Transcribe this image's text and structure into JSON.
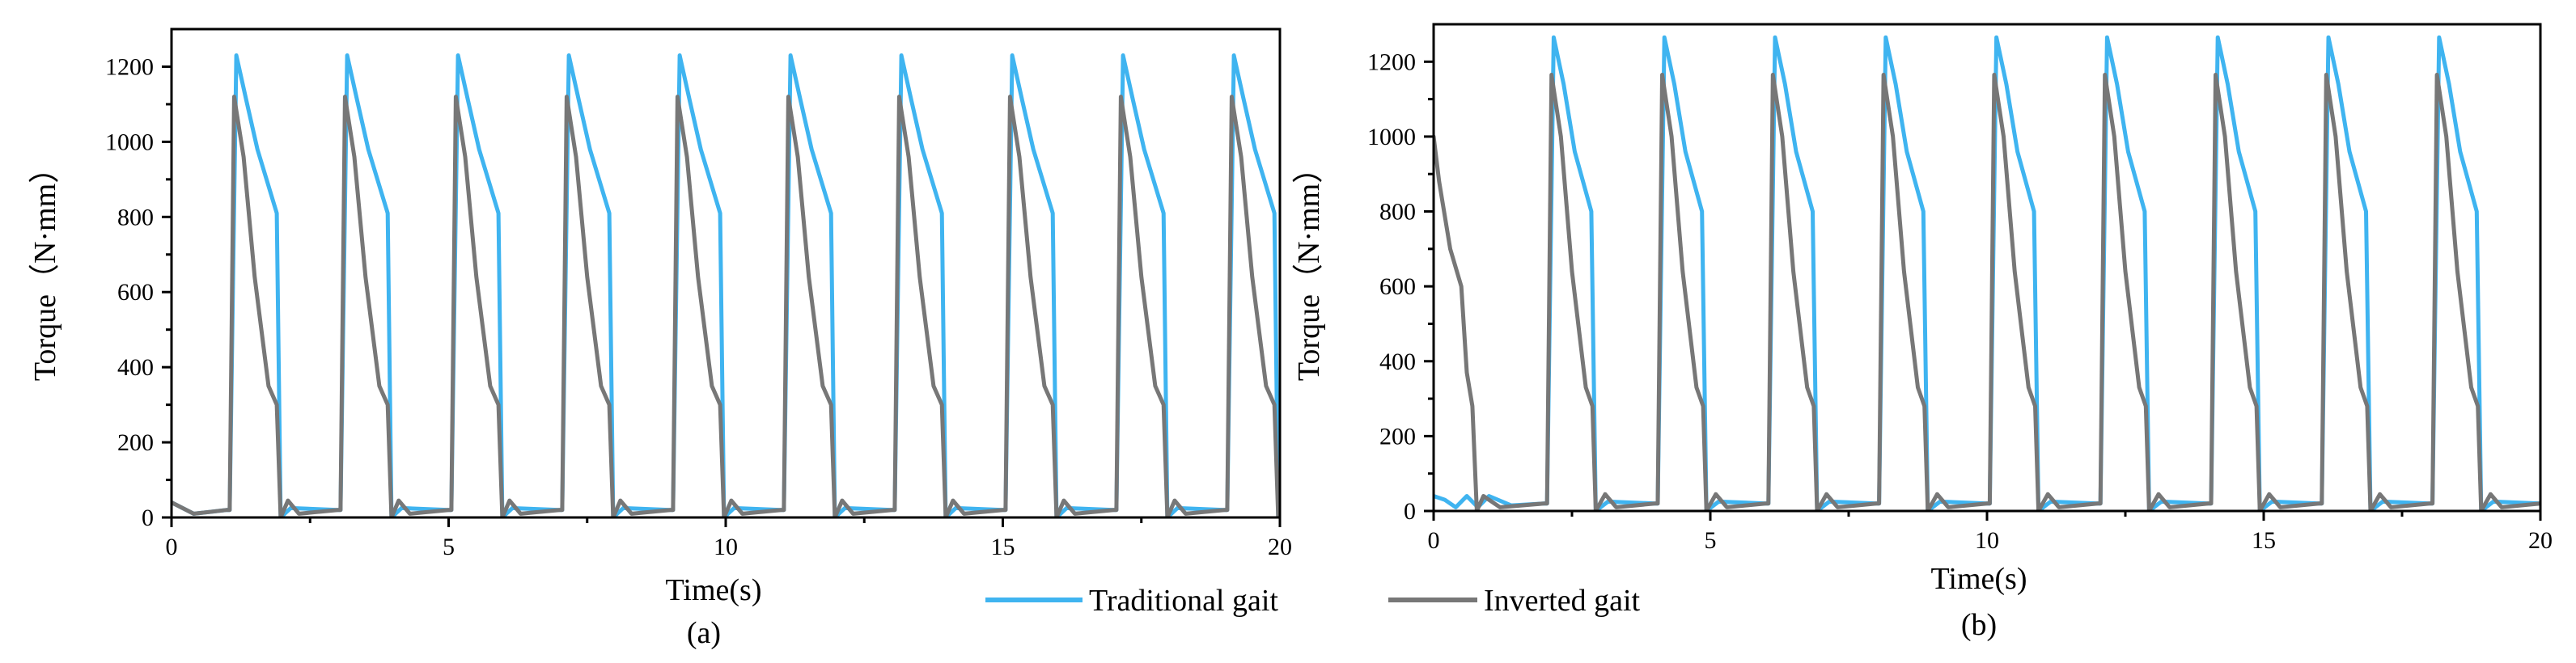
{
  "chart_data": [
    {
      "type": "line",
      "panel": "(a)",
      "xlabel": "Time(s)",
      "ylabel": "Torque（N·mm）",
      "xlim": [
        0,
        20
      ],
      "ylim": [
        0,
        1300
      ],
      "xticks": [
        0,
        5,
        10,
        15,
        20
      ],
      "yticks": [
        0,
        200,
        400,
        600,
        800,
        1000,
        1200
      ],
      "series": [
        {
          "name": "Traditional gait",
          "color": "#3fb4f0",
          "pattern": {
            "period": 2,
            "start": 1.05,
            "count": 10,
            "shape": [
              [
                -0.05,
                20
              ],
              [
                0,
                20
              ],
              [
                0.12,
                1230
              ],
              [
                0.3,
                1110
              ],
              [
                0.5,
                980
              ],
              [
                0.85,
                810
              ],
              [
                0.92,
                0
              ],
              [
                1.1,
                25
              ],
              [
                1.95,
                20
              ]
            ]
          }
        },
        {
          "name": "Inverted gait",
          "color": "#777777",
          "pattern": {
            "period": 2,
            "start": 1.05,
            "count": 10,
            "shape": [
              [
                -0.05,
                20
              ],
              [
                0,
                20
              ],
              [
                0.08,
                1120
              ],
              [
                0.25,
                960
              ],
              [
                0.45,
                640
              ],
              [
                0.7,
                350
              ],
              [
                0.85,
                300
              ],
              [
                0.92,
                0
              ],
              [
                1.05,
                45
              ],
              [
                1.25,
                10
              ],
              [
                1.95,
                20
              ]
            ]
          }
        }
      ]
    },
    {
      "type": "line",
      "panel": "(b)",
      "xlabel": "Time(s)",
      "ylabel": "Torque（N·mm）",
      "xlim": [
        0,
        20
      ],
      "ylim": [
        0,
        1300
      ],
      "xticks": [
        0,
        5,
        10,
        15,
        20
      ],
      "yticks": [
        0,
        200,
        400,
        600,
        800,
        1000,
        1200
      ],
      "series": [
        {
          "name": "Traditional gait",
          "color": "#3fb4f0",
          "pattern": {
            "period": 2,
            "start": 2.05,
            "count": 9,
            "shape": [
              [
                -0.05,
                20
              ],
              [
                0,
                20
              ],
              [
                0.12,
                1265
              ],
              [
                0.3,
                1140
              ],
              [
                0.5,
                960
              ],
              [
                0.8,
                800
              ],
              [
                0.88,
                0
              ],
              [
                1.1,
                25
              ],
              [
                1.95,
                20
              ]
            ]
          },
          "prefix": [
            [
              0,
              40
            ],
            [
              0.2,
              30
            ],
            [
              0.4,
              10
            ],
            [
              0.6,
              40
            ],
            [
              0.8,
              10
            ],
            [
              1.0,
              40
            ],
            [
              1.4,
              15
            ],
            [
              2.0,
              20
            ]
          ]
        },
        {
          "name": "Inverted gait",
          "color": "#777777",
          "pattern": {
            "period": 2,
            "start": 2.05,
            "count": 9,
            "shape": [
              [
                -0.05,
                20
              ],
              [
                0,
                20
              ],
              [
                0.08,
                1165
              ],
              [
                0.25,
                1000
              ],
              [
                0.45,
                640
              ],
              [
                0.7,
                330
              ],
              [
                0.82,
                280
              ],
              [
                0.88,
                0
              ],
              [
                1.05,
                45
              ],
              [
                1.25,
                10
              ],
              [
                1.95,
                20
              ]
            ]
          },
          "prefix": [
            [
              0,
              1000
            ],
            [
              0.1,
              880
            ],
            [
              0.3,
              700
            ],
            [
              0.5,
              600
            ],
            [
              0.6,
              370
            ],
            [
              0.7,
              280
            ],
            [
              0.78,
              0
            ],
            [
              0.9,
              40
            ],
            [
              1.2,
              10
            ],
            [
              2.0,
              20
            ]
          ]
        }
      ]
    }
  ],
  "legend": [
    {
      "label": "Traditional gait",
      "color": "#3fb4f0"
    },
    {
      "label": "Inverted gait",
      "color": "#777777"
    }
  ]
}
